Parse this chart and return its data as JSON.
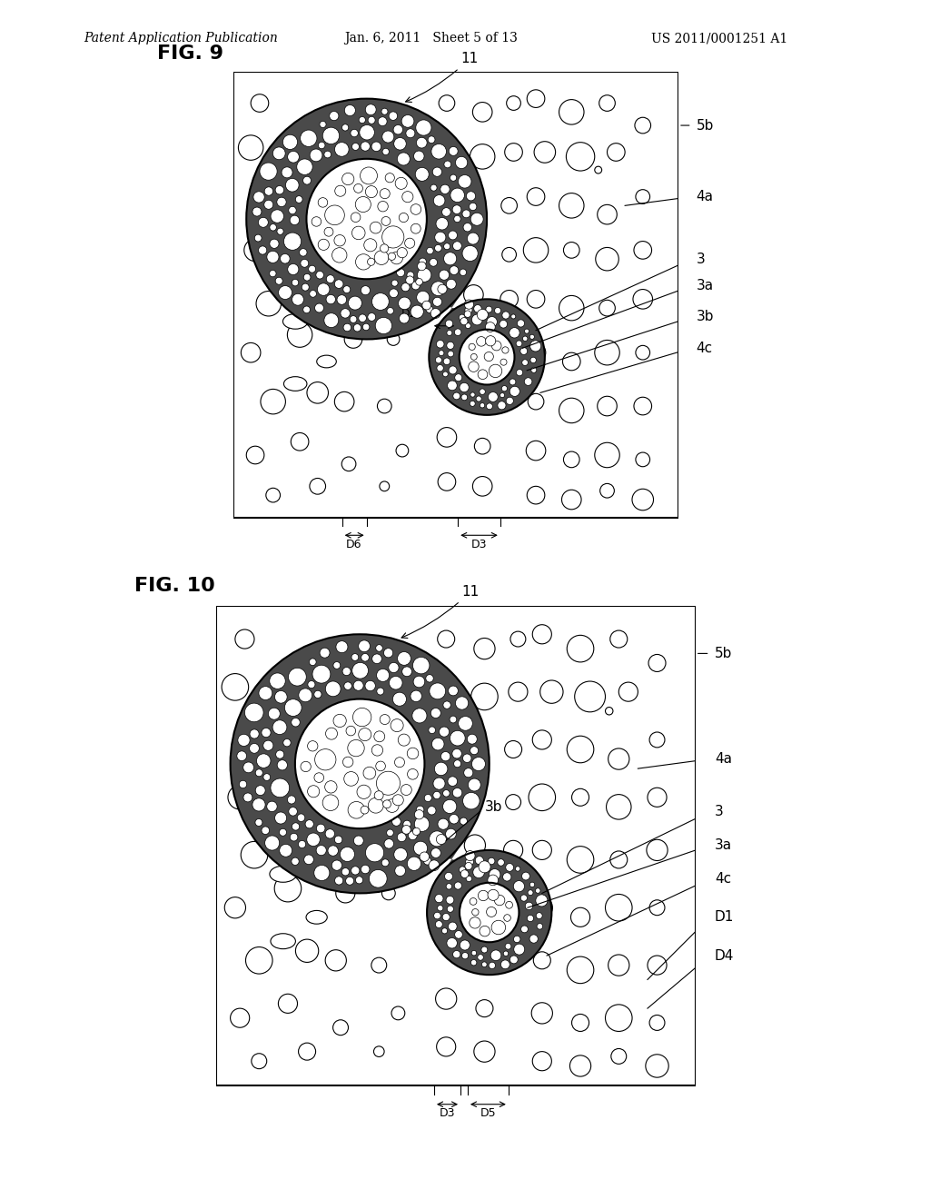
{
  "header_left": "Patent Application Publication",
  "header_mid": "Jan. 6, 2011   Sheet 5 of 13",
  "header_right": "US 2011/0001251 A1",
  "fig9_label": "FIG. 9",
  "fig10_label": "FIG. 10",
  "bg_color": "#ffffff",
  "dark_fill": "#4a4a4a",
  "label_fontsize": 11,
  "header_fontsize": 10
}
